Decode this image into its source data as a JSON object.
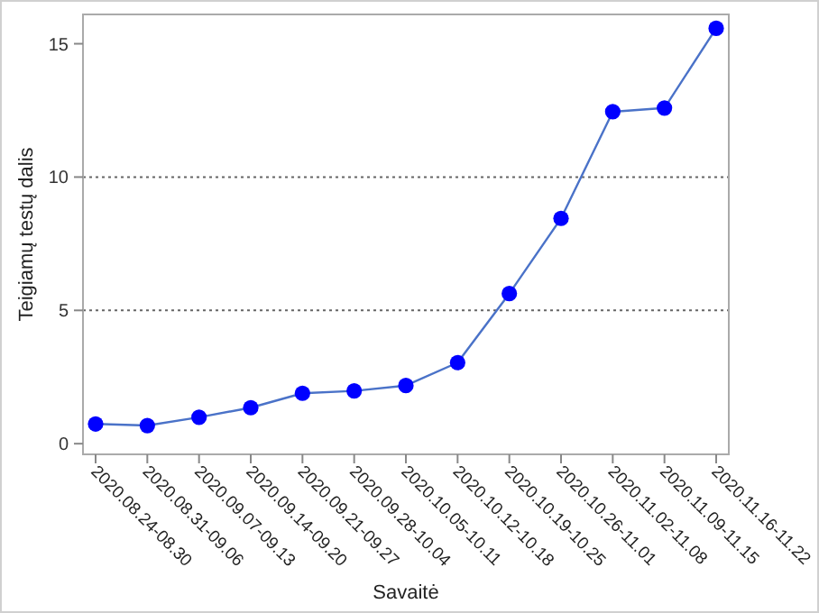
{
  "chart_data": {
    "type": "line",
    "xlabel": "Savaitė",
    "ylabel": "Teigiamų testų dalis",
    "categories": [
      "2020.08.24-08.30",
      "2020.08.31-09.06",
      "2020.09.07-09.13",
      "2020.09.14-09.20",
      "2020.09.21-09.27",
      "2020.09.28-10.04",
      "2020.10.05-10.11",
      "2020.10.12-10.18",
      "2020.10.19-10.25",
      "2020.10.26-11.01",
      "2020.11.02-11.08",
      "2020.11.09-11.15",
      "2020.11.16-11.22"
    ],
    "series": [
      {
        "color": "#0000ff",
        "values": [
          0.74,
          0.68,
          0.99,
          1.35,
          1.89,
          1.98,
          2.18,
          3.04,
          5.63,
          8.45,
          12.45,
          12.59,
          15.58
        ]
      }
    ],
    "ylim": [
      -0.4,
      16.1
    ],
    "yticks": [
      0,
      5,
      10,
      15
    ],
    "grid": "y",
    "marker": "circle",
    "line_style": "solid"
  }
}
